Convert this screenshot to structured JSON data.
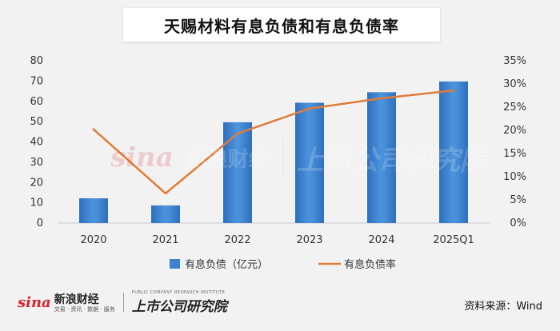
{
  "title": "天赐材料有息负债和有息负债率",
  "source": "资料来源：Wind",
  "watermark": {
    "sina_mark": "sina",
    "sina_name": "新浪财经",
    "sina_tagline": "交易 · 资讯 · 数据 · 服务",
    "institute_name": "上市公司研究院",
    "institute_tagline": "PUBLIC COMPANY RESEARCH INSTITUTE"
  },
  "colors": {
    "bar": "#3a82cf",
    "line": "#e07b39",
    "axis": "#cccccc"
  },
  "chart_data": {
    "type": "bar",
    "title": "天赐材料有息负债和有息负债率",
    "categories": [
      "2020",
      "2021",
      "2022",
      "2023",
      "2024",
      "2025Q1"
    ],
    "series": [
      {
        "name": "有息负债（亿元）",
        "type": "bar",
        "axis": "left",
        "values": [
          12.2,
          8.7,
          49.7,
          59.3,
          64.5,
          69.8
        ]
      },
      {
        "name": "有息负债率",
        "type": "line",
        "axis": "right",
        "values": [
          20.2,
          6.4,
          19.3,
          24.7,
          26.9,
          28.6
        ]
      }
    ],
    "left_axis": {
      "ylim": [
        0,
        80
      ],
      "ticks": [
        "0",
        "10",
        "20",
        "30",
        "40",
        "50",
        "60",
        "70",
        "80"
      ]
    },
    "right_axis": {
      "ylim": [
        0,
        35
      ],
      "ticks": [
        "0%",
        "5%",
        "10%",
        "15%",
        "20%",
        "25%",
        "30%",
        "35%"
      ]
    },
    "legend": {
      "position": "bottom",
      "entries": [
        "有息负债（亿元）",
        "有息负债率"
      ]
    },
    "grid": false
  }
}
